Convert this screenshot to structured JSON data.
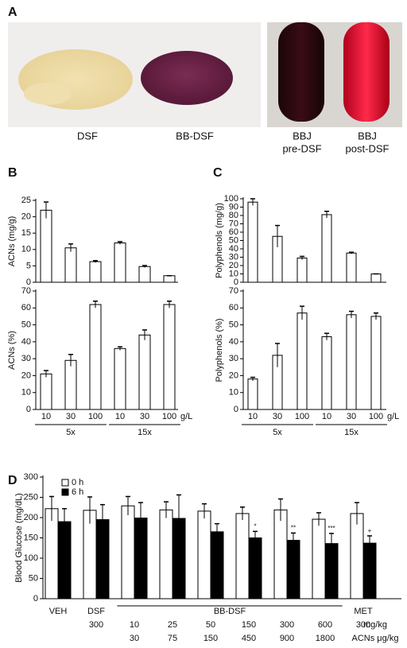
{
  "panels": [
    "A",
    "B",
    "C",
    "D"
  ],
  "photo_labels": [
    [
      "DSF"
    ],
    [
      "BB-DSF"
    ],
    [
      "BBJ",
      "pre-DSF"
    ],
    [
      "BBJ",
      "post-DSF"
    ]
  ],
  "chart_data": [
    {
      "type": "bar",
      "y_label": "ACNs (mg/g)",
      "values": [
        22,
        10.5,
        6.3,
        12,
        4.8,
        2
      ],
      "errors": [
        2.5,
        1.2,
        0.3,
        0.4,
        0.3,
        0
      ],
      "color": "#ffffff",
      "ylim": [
        0,
        25
      ],
      "yticks": [
        0,
        5,
        10,
        15,
        20,
        25
      ]
    },
    {
      "type": "bar",
      "y_label": "ACNs (%)",
      "categories": [
        "10",
        "30",
        "100",
        "10",
        "30",
        "100"
      ],
      "x_unit": "g/L",
      "groups": [
        {
          "label": "5x",
          "count": 3
        },
        {
          "label": "15x",
          "count": 3
        }
      ],
      "values": [
        21,
        29,
        62,
        36,
        44,
        62
      ],
      "errors": [
        2,
        3.5,
        2,
        1,
        3,
        2
      ],
      "color": "#ffffff",
      "ylim": [
        0,
        70
      ],
      "yticks": [
        0,
        10,
        20,
        30,
        40,
        50,
        60,
        70
      ]
    },
    {
      "type": "bar",
      "y_label": "Polyphenols (mg/g)",
      "values": [
        96,
        55,
        29,
        81,
        35,
        10
      ],
      "errors": [
        4,
        13,
        2,
        4,
        1,
        0
      ],
      "color": "#ffffff",
      "ylim": [
        0,
        100
      ],
      "yticks": [
        0,
        10,
        20,
        30,
        40,
        50,
        60,
        70,
        80,
        90,
        100
      ]
    },
    {
      "type": "bar",
      "y_label": "Polyphenols (%)",
      "categories": [
        "10",
        "30",
        "100",
        "10",
        "30",
        "100"
      ],
      "x_unit": "g/L",
      "groups": [
        {
          "label": "5x",
          "count": 3
        },
        {
          "label": "15x",
          "count": 3
        }
      ],
      "values": [
        18,
        32,
        57,
        43,
        56,
        55
      ],
      "errors": [
        1,
        7,
        4,
        2,
        2,
        2
      ],
      "color": "#ffffff",
      "ylim": [
        0,
        70
      ],
      "yticks": [
        0,
        10,
        20,
        30,
        40,
        50,
        60,
        70
      ]
    },
    {
      "type": "grouped_bar",
      "y_label": "Blood Glucose (mg/dL)",
      "groups": [
        {
          "label": "VEH",
          "count": 1
        },
        {
          "label": "DSF",
          "count": 1
        },
        {
          "label": "BB-DSF",
          "count": 6
        },
        {
          "label": "MET",
          "count": 1
        }
      ],
      "dose_labels": [
        null,
        "300",
        "10",
        "25",
        "50",
        "150",
        "300",
        "600",
        "300"
      ],
      "dose_unit": "mg/kg",
      "acn_labels": [
        null,
        null,
        "30",
        "75",
        "150",
        "450",
        "900",
        "1800",
        null
      ],
      "acn_unit": "ACNs μg/kg",
      "series": [
        {
          "name": "0 h",
          "color": "#ffffff",
          "values": [
            222,
            218,
            229,
            219,
            216,
            210,
            219,
            196,
            210
          ],
          "errors": [
            30,
            33,
            23,
            20,
            18,
            16,
            27,
            16,
            27
          ]
        },
        {
          "name": "6 h",
          "color": "#000000",
          "values": [
            190,
            195,
            199,
            198,
            165,
            150,
            144,
            136,
            137
          ],
          "errors": [
            32,
            37,
            38,
            58,
            20,
            16,
            18,
            25,
            18
          ],
          "sig_labels": [
            null,
            null,
            null,
            null,
            null,
            "*",
            "**",
            "***",
            "+"
          ]
        }
      ],
      "ylim": [
        0,
        300
      ],
      "yticks": [
        0,
        50,
        100,
        150,
        200,
        250,
        300
      ],
      "legend": "top-left"
    }
  ]
}
